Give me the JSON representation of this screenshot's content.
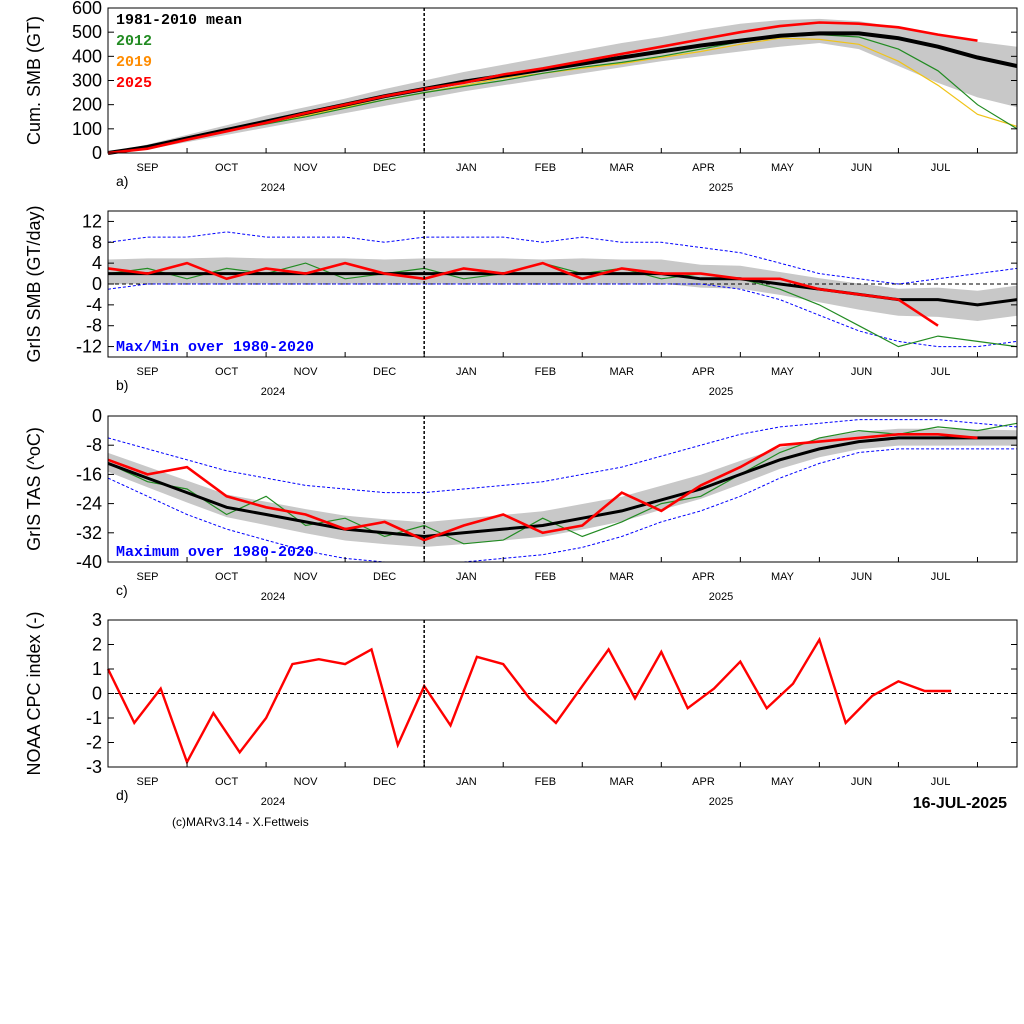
{
  "chart_data": [
    {
      "type": "line",
      "panel_letter": "a)",
      "ylabel": "Cum. SMB (GT)",
      "ylim": [
        0,
        600
      ],
      "yticks": [
        "0",
        "100",
        "200",
        "300",
        "400",
        "500",
        "600"
      ],
      "months": [
        "SEP",
        "OCT",
        "NOV",
        "DEC",
        "JAN",
        "FEB",
        "MAR",
        "APR",
        "MAY",
        "JUN",
        "JUL"
      ],
      "years": [
        "2024",
        "2025"
      ],
      "legend": [
        "1981-2010 mean",
        "2012",
        "2019",
        "2025"
      ],
      "colors": {
        "mean": "#000000",
        "y2012": "#228b22",
        "y2019": "#f0c419",
        "y2025": "#ff0000",
        "band": "#c8c8c8",
        "legend2019": "#ff8c00"
      },
      "x": [
        0,
        15,
        30,
        45,
        60,
        75,
        90,
        105,
        120,
        135,
        150,
        165,
        180,
        195,
        210,
        225,
        240,
        255,
        270,
        285,
        300,
        315,
        330,
        345
      ],
      "mean": [
        0,
        25,
        60,
        95,
        130,
        165,
        200,
        235,
        265,
        295,
        320,
        345,
        370,
        395,
        420,
        445,
        465,
        485,
        495,
        495,
        475,
        440,
        395,
        360
      ],
      "band_low": [
        0,
        15,
        45,
        75,
        105,
        135,
        165,
        195,
        225,
        255,
        280,
        305,
        330,
        355,
        380,
        400,
        420,
        440,
        455,
        430,
        360,
        290,
        230,
        190
      ],
      "band_high": [
        0,
        35,
        75,
        115,
        155,
        190,
        225,
        265,
        300,
        335,
        365,
        395,
        425,
        455,
        480,
        510,
        535,
        550,
        555,
        545,
        520,
        490,
        460,
        440
      ],
      "y2012": [
        0,
        20,
        55,
        90,
        120,
        150,
        185,
        220,
        250,
        275,
        300,
        330,
        355,
        375,
        400,
        430,
        460,
        480,
        490,
        480,
        430,
        340,
        200,
        100
      ],
      "y2019": [
        0,
        22,
        55,
        88,
        122,
        155,
        190,
        220,
        250,
        280,
        310,
        330,
        350,
        370,
        395,
        420,
        450,
        475,
        470,
        450,
        380,
        280,
        160,
        110
      ],
      "y2025": [
        0,
        18,
        55,
        90,
        125,
        165,
        200,
        235,
        265,
        290,
        325,
        350,
        380,
        410,
        440,
        470,
        500,
        525,
        540,
        535,
        520,
        490,
        465,
        null
      ]
    },
    {
      "type": "line",
      "panel_letter": "b)",
      "ylabel": "GrIS SMB (GT/day)",
      "ylim": [
        -14,
        14
      ],
      "yticks": [
        "-12",
        "-8",
        "-4",
        "0",
        "4",
        "8",
        "12"
      ],
      "annotation": "Max/Min over 1980-2020",
      "x": [
        0,
        15,
        30,
        45,
        60,
        75,
        90,
        105,
        120,
        135,
        150,
        165,
        180,
        195,
        210,
        225,
        240,
        255,
        270,
        285,
        300,
        315,
        330,
        345
      ],
      "mean": [
        2,
        2,
        2,
        2,
        2,
        2,
        2,
        2,
        2,
        2,
        2,
        2,
        2,
        2,
        2,
        1,
        1,
        0,
        -1,
        -2,
        -3,
        -3,
        -4,
        -3
      ],
      "max": [
        8,
        9,
        9,
        10,
        9,
        9,
        9,
        8,
        9,
        9,
        9,
        8,
        9,
        8,
        8,
        7,
        6,
        4,
        2,
        1,
        0,
        1,
        2,
        3
      ],
      "min": [
        -1,
        0,
        0,
        0,
        0,
        0,
        0,
        0,
        0,
        0,
        0,
        0,
        0,
        0,
        0,
        0,
        -1,
        -3,
        -6,
        -9,
        -11,
        -12,
        -12,
        -11
      ],
      "y2012": [
        2,
        3,
        1,
        3,
        2,
        4,
        1,
        2,
        3,
        1,
        2,
        4,
        2,
        3,
        1,
        2,
        1,
        -1,
        -4,
        -8,
        -12,
        -10,
        -11,
        -12
      ],
      "y2025": [
        3,
        2,
        4,
        1,
        3,
        2,
        4,
        2,
        1,
        3,
        2,
        4,
        1,
        3,
        2,
        2,
        1,
        1,
        -1,
        -2,
        -3,
        -8,
        null,
        null
      ]
    },
    {
      "type": "line",
      "panel_letter": "c)",
      "ylabel": "GrIS TAS (^oC)",
      "ylim": [
        -40,
        0
      ],
      "yticks": [
        "-40",
        "-32",
        "-24",
        "-16",
        "-8",
        "0"
      ],
      "annotation": "Maximum over 1980-2020",
      "x": [
        0,
        15,
        30,
        45,
        60,
        75,
        90,
        105,
        120,
        135,
        150,
        165,
        180,
        195,
        210,
        225,
        240,
        255,
        270,
        285,
        300,
        315,
        330,
        345
      ],
      "mean": [
        -13,
        -17,
        -21,
        -25,
        -27,
        -29,
        -31,
        -32,
        -33,
        -32,
        -31,
        -30,
        -28,
        -26,
        -23,
        -20,
        -16,
        -12,
        -9,
        -7,
        -6,
        -6,
        -6,
        -6
      ],
      "max": [
        -6,
        -9,
        -12,
        -15,
        -17,
        -19,
        -20,
        -21,
        -21,
        -20,
        -19,
        -18,
        -16,
        -14,
        -11,
        -8,
        -5,
        -3,
        -2,
        -1,
        -1,
        -1,
        -2,
        -3
      ],
      "min": [
        -17,
        -22,
        -27,
        -31,
        -34,
        -37,
        -39,
        -40,
        -40,
        -40,
        -39,
        -38,
        -36,
        -33,
        -29,
        -26,
        -22,
        -17,
        -13,
        -10,
        -9,
        -9,
        -9,
        -9
      ],
      "y2012": [
        -13,
        -18,
        -20,
        -27,
        -22,
        -30,
        -28,
        -33,
        -30,
        -35,
        -34,
        -28,
        -33,
        -29,
        -24,
        -22,
        -16,
        -10,
        -6,
        -4,
        -5,
        -3,
        -4,
        -2
      ],
      "y2025": [
        -12,
        -16,
        -14,
        -22,
        -25,
        -27,
        -31,
        -29,
        -34,
        -30,
        -27,
        -32,
        -30,
        -21,
        -26,
        -19,
        -14,
        -8,
        -7,
        -6,
        -5,
        -5,
        -6,
        null
      ]
    },
    {
      "type": "line",
      "panel_letter": "d)",
      "ylabel": "NOAA CPC index (-)",
      "ylim": [
        -3,
        3
      ],
      "yticks": [
        "-3",
        "-2",
        "-1",
        "0",
        "1",
        "2",
        "3"
      ],
      "x": [
        0,
        10,
        20,
        30,
        40,
        50,
        60,
        70,
        80,
        90,
        100,
        110,
        120,
        130,
        140,
        150,
        160,
        170,
        180,
        190,
        200,
        210,
        220,
        230,
        240,
        250,
        260,
        270,
        280,
        290,
        300,
        310,
        320
      ],
      "y": [
        1,
        -1.2,
        0.2,
        -2.8,
        -0.8,
        -2.4,
        -1,
        1.2,
        1.4,
        1.2,
        1.8,
        -2.1,
        0.3,
        -1.3,
        1.5,
        1.2,
        -0.2,
        -1.2,
        0.3,
        1.8,
        -0.2,
        1.7,
        -0.6,
        0.2,
        1.3,
        -0.6,
        0.4,
        2.2,
        -1.2,
        -0.1,
        0.5,
        0.1,
        0.1
      ]
    }
  ],
  "labels": {
    "vertical_marker_label": "",
    "date_stamp": "16-JUL-2025",
    "credit": "(c)MARv3.14 - X.Fettweis"
  }
}
